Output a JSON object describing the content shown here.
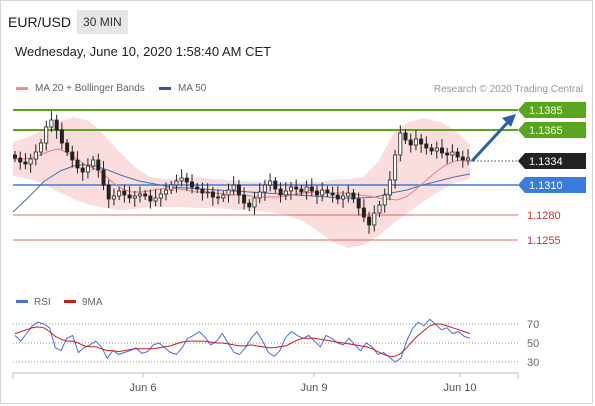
{
  "header": {
    "symbol": "EUR/USD",
    "timeframe": "30 MIN"
  },
  "timestamp": "Wednesday, June 10, 2020 1:58:40 AM CET",
  "legend": {
    "ma20_bb": {
      "label": "MA 20 + Bollinger Bands",
      "color": "#f08c8c"
    },
    "ma50": {
      "label": "MA 50",
      "color": "#2b5a9e"
    }
  },
  "credit": "Research © 2020 Trading Central",
  "chart_data": {
    "type": "candlestick",
    "ylim": [
      1.1225,
      1.1395
    ],
    "current_price": {
      "value": 1.1334,
      "label": "1.1334"
    },
    "forecast_arrow": {
      "from": 1.1334,
      "to": 1.1381
    },
    "levels": [
      {
        "value": 1.1385,
        "label": "1.1385",
        "kind": "resistance",
        "color": "#5aa51e"
      },
      {
        "value": 1.1365,
        "label": "1.1365",
        "kind": "resistance",
        "color": "#5aa51e"
      },
      {
        "value": 1.131,
        "label": "1.1310",
        "kind": "pivot",
        "color": "#3a7cdc"
      },
      {
        "value": 1.128,
        "label": "1.1280",
        "kind": "support",
        "color": "#d23232"
      },
      {
        "value": 1.1255,
        "label": "1.1255",
        "kind": "support",
        "color": "#d23232"
      }
    ],
    "price_path": [
      1.1337,
      1.1333,
      1.1331,
      1.1336,
      1.1343,
      1.1352,
      1.1368,
      1.1375,
      1.1365,
      1.1352,
      1.1343,
      1.1335,
      1.1327,
      1.1323,
      1.1329,
      1.1335,
      1.1325,
      1.131,
      1.1296,
      1.1299,
      1.1304,
      1.13,
      1.1297,
      1.1299,
      1.1301,
      1.1299,
      1.1294,
      1.1297,
      1.1301,
      1.1305,
      1.131,
      1.1314,
      1.1317,
      1.1313,
      1.1308,
      1.1306,
      1.1302,
      1.1303,
      1.1298,
      1.1297,
      1.13,
      1.1305,
      1.131,
      1.13,
      1.1292,
      1.1288,
      1.1297,
      1.1303,
      1.131,
      1.1314,
      1.1306,
      1.13,
      1.1304,
      1.1308,
      1.1306,
      1.1303,
      1.1308,
      1.1304,
      1.13,
      1.1305,
      1.1302,
      1.13,
      1.1296,
      1.1299,
      1.1302,
      1.1296,
      1.1287,
      1.1278,
      1.127,
      1.1282,
      1.129,
      1.13,
      1.1315,
      1.134,
      1.1362,
      1.1355,
      1.135,
      1.1356,
      1.1351,
      1.1347,
      1.1344,
      1.1347,
      1.1342,
      1.134,
      1.1343,
      1.1338,
      1.1335,
      1.1337
    ],
    "ma20": [
      1.1336,
      1.1336,
      1.1337,
      1.134,
      1.1344,
      1.1346,
      1.1342,
      1.1336,
      1.133,
      1.1326,
      1.132,
      1.1312,
      1.1306,
      1.1303,
      1.1303,
      1.1304,
      1.1306,
      1.1307,
      1.1306,
      1.1305,
      1.1303,
      1.1303,
      1.1302,
      1.1301,
      1.13,
      1.13,
      1.1299,
      1.1298,
      1.1298,
      1.1298,
      1.1299,
      1.1301,
      1.1302,
      1.1303,
      1.1302,
      1.1302,
      1.1302,
      1.1301,
      1.13,
      1.1299,
      1.1297,
      1.1296,
      1.1295,
      1.1298,
      1.1305,
      1.1313,
      1.1321,
      1.1328,
      1.1333,
      1.1335,
      1.1333
    ],
    "bb_upper": [
      1.1353,
      1.1358,
      1.1366,
      1.1374,
      1.1378,
      1.1374,
      1.136,
      1.1343,
      1.1328,
      1.1318,
      1.1316,
      1.1317,
      1.1318,
      1.1316,
      1.1315,
      1.1314,
      1.1313,
      1.1314,
      1.1313,
      1.1313,
      1.1313,
      1.1315,
      1.1316,
      1.1318,
      1.1334,
      1.1362,
      1.1373,
      1.1377,
      1.1373,
      1.1365,
      1.135
    ],
    "bb_lower": [
      1.1319,
      1.1316,
      1.1311,
      1.1303,
      1.1296,
      1.129,
      1.1287,
      1.1285,
      1.1286,
      1.1288,
      1.1288,
      1.1288,
      1.1287,
      1.1287,
      1.1286,
      1.1285,
      1.1284,
      1.1283,
      1.128,
      1.1274,
      1.1264,
      1.1253,
      1.1247,
      1.125,
      1.1259,
      1.1272,
      1.1283,
      1.1294,
      1.1304,
      1.1312,
      1.1316
    ],
    "ma50": [
      1.1283,
      1.1298,
      1.1314,
      1.1324,
      1.133,
      1.133,
      1.1325,
      1.1319,
      1.1314,
      1.1311,
      1.1308,
      1.1307,
      1.1306,
      1.1305,
      1.1304,
      1.1303,
      1.1302,
      1.1301,
      1.13,
      1.1299,
      1.1298,
      1.1297,
      1.1297,
      1.1298,
      1.1302,
      1.1305,
      1.131,
      1.1314,
      1.1318,
      1.1321
    ],
    "rsi_panel": {
      "legend": [
        {
          "name": "RSI",
          "color": "#4a70d8"
        },
        {
          "name": "9MA",
          "color": "#cc1d1d"
        }
      ],
      "yticks": [
        "70",
        "50",
        "30"
      ],
      "rsi": [
        58,
        52,
        60,
        68,
        72,
        70,
        66,
        45,
        42,
        55,
        58,
        40,
        45,
        48,
        52,
        46,
        34,
        42,
        38,
        40,
        42,
        45,
        39,
        41,
        48,
        50,
        45,
        40,
        38,
        45,
        55,
        58,
        62,
        56,
        48,
        52,
        60,
        50,
        40,
        38,
        45,
        55,
        62,
        52,
        40,
        36,
        42,
        56,
        62,
        58,
        55,
        58,
        52,
        46,
        58,
        55,
        50,
        48,
        55,
        48,
        42,
        50,
        46,
        38,
        40,
        35,
        30,
        34,
        52,
        65,
        72,
        68,
        75,
        70,
        64,
        66,
        60,
        62,
        57,
        55
      ],
      "ma9": [
        60,
        62,
        64,
        66,
        67,
        66,
        62,
        57,
        54,
        52,
        52,
        50,
        47,
        46,
        46,
        44,
        42,
        42,
        41,
        42,
        43,
        44,
        44,
        44,
        44,
        45,
        46,
        47,
        49,
        51,
        52,
        52,
        52,
        52,
        51,
        50,
        50,
        49,
        48,
        47,
        47,
        48,
        47,
        46,
        45,
        45,
        46,
        47,
        50,
        53,
        55,
        55,
        55,
        54,
        53,
        52,
        51,
        50,
        49,
        48,
        47,
        46,
        44,
        41,
        38,
        36,
        36,
        39,
        45,
        52,
        58,
        63,
        68,
        70,
        70,
        68,
        66,
        64,
        62,
        60
      ]
    },
    "xaxis": {
      "labels": [
        "Jun 6",
        "Jun 9",
        "Jun 10"
      ]
    }
  }
}
